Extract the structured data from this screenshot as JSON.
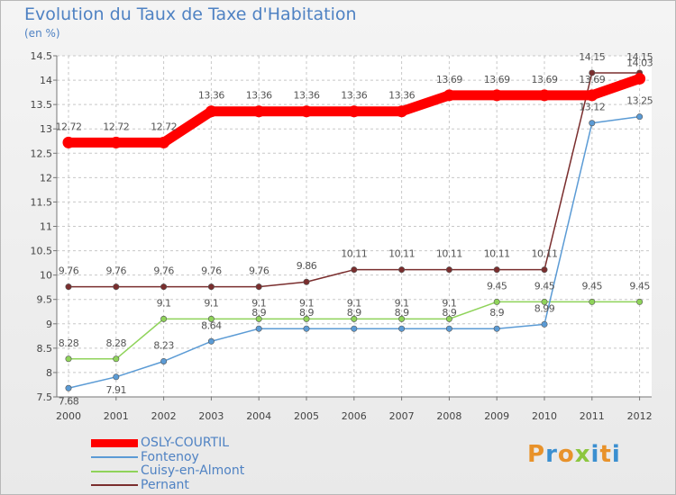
{
  "title": "Evolution du Taux de Taxe d'Habitation",
  "unit_label": "(en %)",
  "brand": "Proxiti",
  "chart_data": {
    "type": "line",
    "title": "Evolution du Taux de Taxe d'Habitation",
    "subtitle": "(en %)",
    "categories": [
      "2000",
      "2001",
      "2002",
      "2003",
      "2004",
      "2005",
      "2006",
      "2007",
      "2008",
      "2009",
      "2010",
      "2011",
      "2012"
    ],
    "ylim": [
      7.5,
      14.5
    ],
    "yticks": [
      7.5,
      8,
      8.5,
      9,
      9.5,
      10,
      10.5,
      11,
      11.5,
      12,
      12.5,
      13,
      13.5,
      14,
      14.5
    ],
    "grid": true,
    "legend_position": "bottom-left",
    "series": [
      {
        "name": "OSLY-COURTIL",
        "color": "#ff0000",
        "values": [
          12.72,
          12.72,
          12.72,
          13.36,
          13.36,
          13.36,
          13.36,
          13.36,
          13.69,
          13.69,
          13.69,
          13.69,
          14.03
        ],
        "labels": [
          "12.72",
          "12.72",
          "12.72",
          "13.36",
          "13.36",
          "13.36",
          "13.36",
          "13.36",
          "13.69",
          "13.69",
          "13.69",
          "13.69",
          "14.03"
        ]
      },
      {
        "name": "Fontenoy",
        "color": "#5b9bd5",
        "values": [
          7.68,
          7.91,
          8.23,
          8.64,
          8.9,
          8.9,
          8.9,
          8.9,
          8.9,
          8.9,
          8.99,
          13.12,
          13.25
        ],
        "labels": [
          "7.68",
          "7.91",
          "8.23",
          "8.64",
          "8.9",
          "8.9",
          "8.9",
          "8.9",
          "8.9",
          "8.9",
          "8.99",
          "13.12",
          "13.25"
        ]
      },
      {
        "name": "Cuisy-en-Almont",
        "color": "#8fd35a",
        "values": [
          8.28,
          8.28,
          9.1,
          9.1,
          9.1,
          9.1,
          9.1,
          9.1,
          9.1,
          9.45,
          9.45,
          9.45,
          9.45
        ],
        "labels": [
          "8.28",
          "8.28",
          "9.1",
          "9.1",
          "9.1",
          "9.1",
          "9.1",
          "9.1",
          "9.1",
          "9.45",
          "9.45",
          "9.45",
          "9.45"
        ]
      },
      {
        "name": "Pernant",
        "color": "#7a2e2e",
        "values": [
          9.76,
          9.76,
          9.76,
          9.76,
          9.76,
          9.86,
          10.11,
          10.11,
          10.11,
          10.11,
          10.11,
          14.15,
          14.15
        ],
        "labels": [
          "9.76",
          "9.76",
          "9.76",
          "9.76",
          "9.76",
          "9.86",
          "10.11",
          "10.11",
          "10.11",
          "10.11",
          "10.11",
          "14.15",
          "14.15"
        ]
      }
    ]
  }
}
